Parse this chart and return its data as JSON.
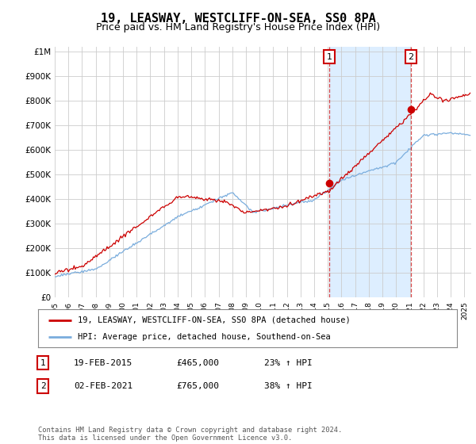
{
  "title": "19, LEASWAY, WESTCLIFF-ON-SEA, SS0 8PA",
  "subtitle": "Price paid vs. HM Land Registry's House Price Index (HPI)",
  "ytick_values": [
    0,
    100000,
    200000,
    300000,
    400000,
    500000,
    600000,
    700000,
    800000,
    900000,
    1000000
  ],
  "ylim": [
    0,
    1020000
  ],
  "xlim_start": 1995.0,
  "xlim_end": 2025.5,
  "background_color": "#ffffff",
  "plot_bg_color": "#ffffff",
  "grid_color": "#cccccc",
  "hpi_line_color": "#7aaddd",
  "price_line_color": "#cc0000",
  "shade_color": "#ddeeff",
  "sale1_date_x": 2015.12,
  "sale1_price": 465000,
  "sale2_date_x": 2021.08,
  "sale2_price": 765000,
  "legend_entry1": "19, LEASWAY, WESTCLIFF-ON-SEA, SS0 8PA (detached house)",
  "legend_entry2": "HPI: Average price, detached house, Southend-on-Sea",
  "table_row1": [
    "1",
    "19-FEB-2015",
    "£465,000",
    "23% ↑ HPI"
  ],
  "table_row2": [
    "2",
    "02-FEB-2021",
    "£765,000",
    "38% ↑ HPI"
  ],
  "footer": "Contains HM Land Registry data © Crown copyright and database right 2024.\nThis data is licensed under the Open Government Licence v3.0.",
  "title_fontsize": 11,
  "subtitle_fontsize": 9
}
